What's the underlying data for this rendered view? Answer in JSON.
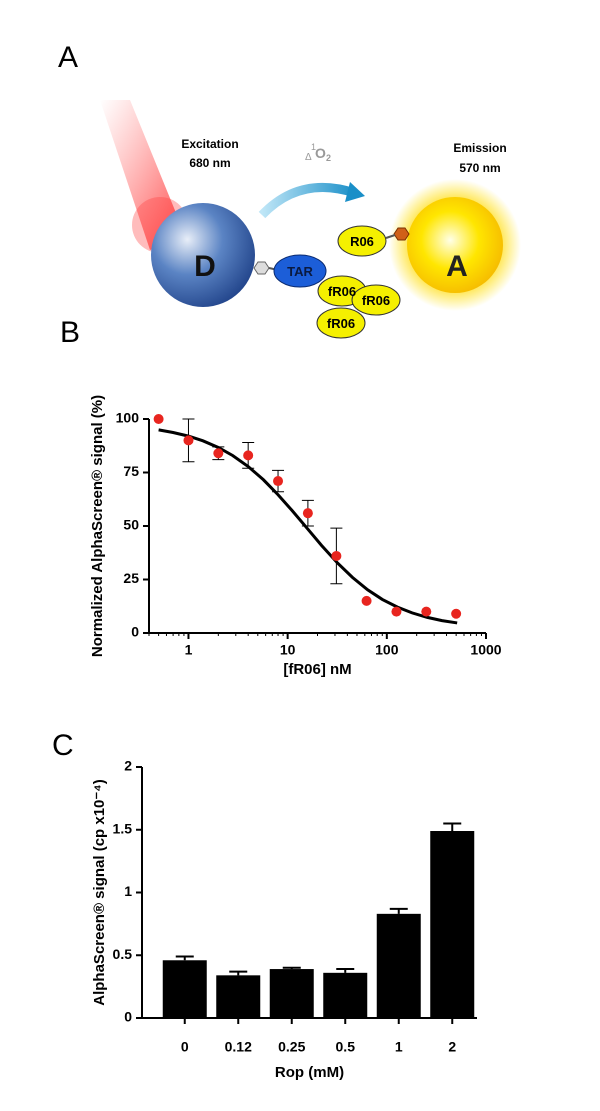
{
  "panel_labels": [
    "A",
    "B",
    "C"
  ],
  "diagram": {
    "excitation": "Excitation",
    "excitation_wavelength": "680 nm",
    "emission": "Emission",
    "emission_wavelength": "570 nm",
    "oxygen": {
      "sup": "1",
      "sub": "Δ",
      "main": "O",
      "index": "2"
    },
    "donor": "D",
    "acceptor": "A",
    "tar": "TAR",
    "r06": "R06",
    "fr06": [
      "fR06",
      "fR06",
      "fR06"
    ]
  },
  "chart_data": [
    {
      "type": "scatter",
      "xlabel": "[fR06] nM",
      "ylabel": "Normalized AlphaScreen® signal (%)",
      "xscale": "log",
      "xlim": [
        0.4,
        1000
      ],
      "xticks": [
        1,
        10,
        100,
        1000
      ],
      "ylim": [
        0,
        100
      ],
      "yticks": [
        0,
        25,
        50,
        75,
        100
      ],
      "points": {
        "color": "#e8251f",
        "x": [
          0.5,
          1,
          2,
          4,
          8,
          16,
          31,
          62.5,
          125,
          250,
          500
        ],
        "values": [
          100,
          90,
          84,
          83,
          71,
          56,
          36,
          15,
          10,
          10,
          9
        ],
        "errors": [
          0,
          10,
          3,
          6,
          5,
          6,
          13,
          0,
          0,
          0,
          0
        ]
      },
      "fit": {
        "color": "#000000",
        "x": [
          0.5,
          0.7,
          1,
          1.4,
          2,
          2.8,
          4,
          5.7,
          8,
          11,
          16,
          22,
          32,
          45,
          64,
          90,
          128,
          180,
          256,
          360,
          512
        ],
        "values": [
          94.9,
          93.7,
          92.0,
          89.8,
          86.7,
          82.9,
          77.8,
          71.6,
          64.6,
          57.4,
          48.5,
          40.9,
          32.6,
          26,
          20.2,
          15.7,
          12.1,
          9.4,
          7.3,
          5.8,
          4.7
        ]
      }
    },
    {
      "type": "bar",
      "xlabel": "Rop (mM)",
      "ylabel": "AlphaScreen® signal (cp x10⁻⁴)",
      "categories": [
        "0",
        "0.12",
        "0.25",
        "0.5",
        "1",
        "2"
      ],
      "values": [
        0.46,
        0.34,
        0.39,
        0.36,
        0.83,
        1.49
      ],
      "errors": [
        0.03,
        0.03,
        0.01,
        0.03,
        0.04,
        0.06
      ],
      "color": "#000000",
      "ylim": [
        0,
        2
      ],
      "yticks": [
        0,
        0.5,
        1,
        1.5,
        2
      ]
    }
  ]
}
